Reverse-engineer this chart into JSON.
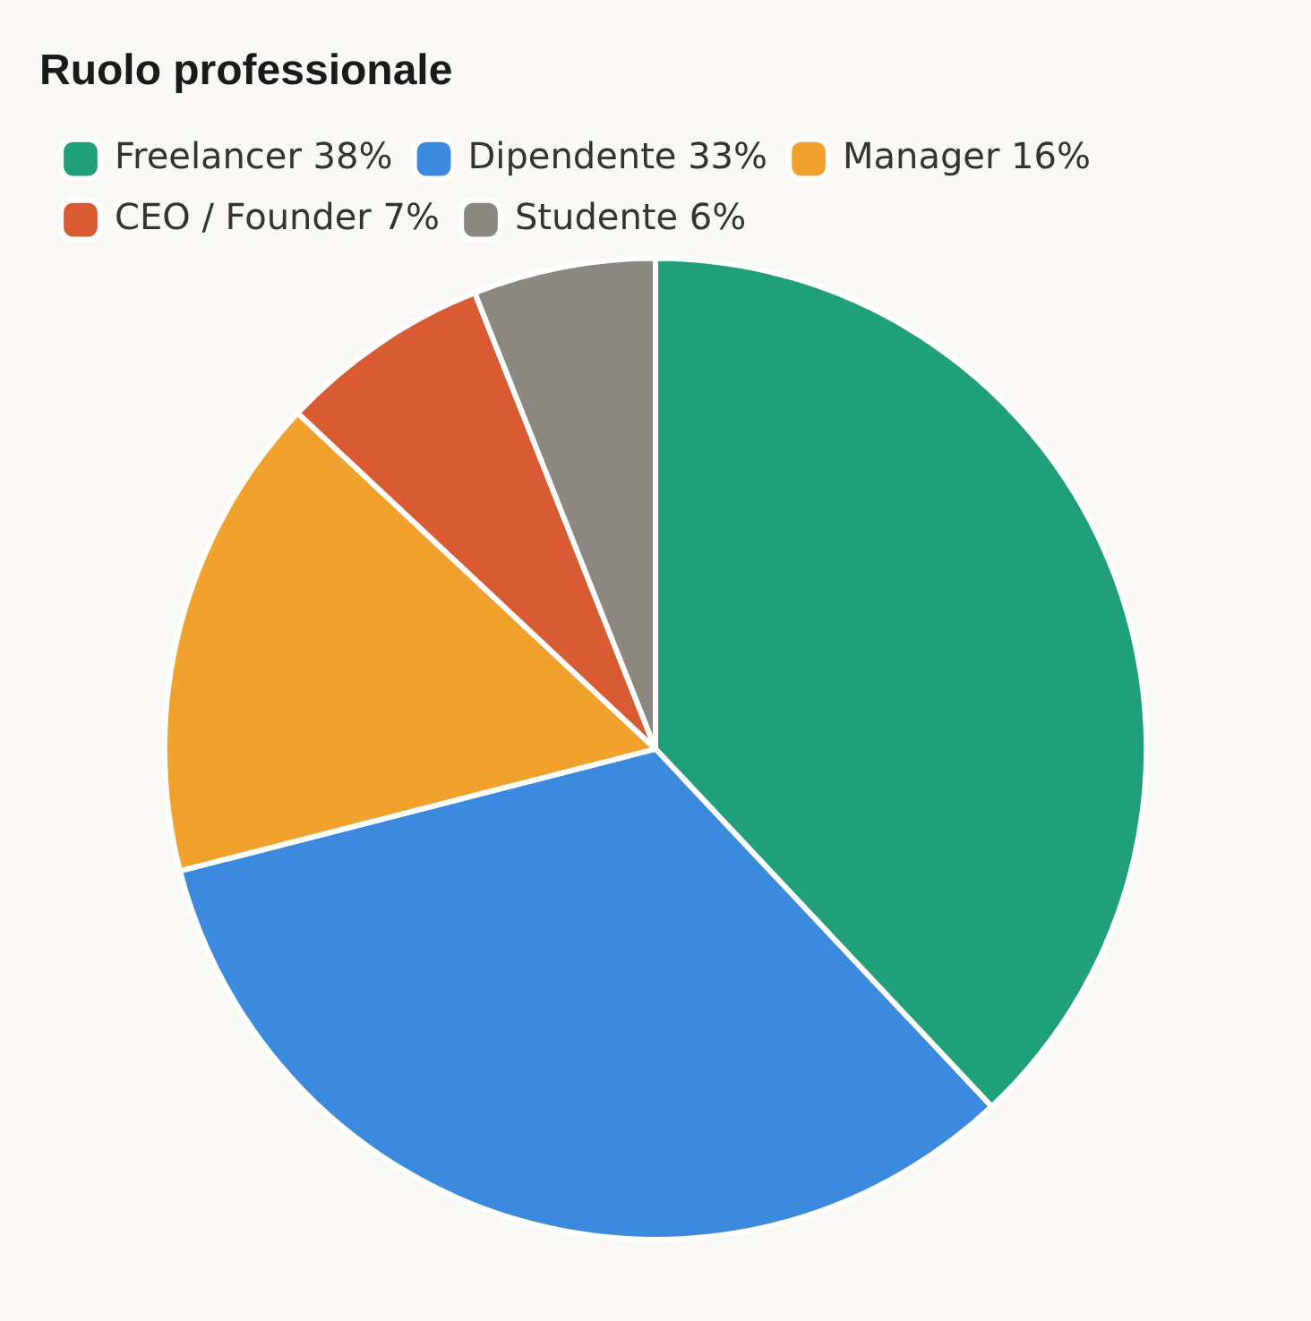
{
  "chart_data": {
    "type": "pie",
    "title": "Ruolo professionale",
    "categories": [
      "Freelancer 38%",
      "Dipendente 33%",
      "Manager 16%",
      "CEO / Founder 7%",
      "Studente 6%"
    ],
    "values": [
      38,
      33,
      16,
      7,
      6
    ],
    "colors": [
      "#1fa078",
      "#3b8ade",
      "#f0a22c",
      "#d95b33",
      "#8a8880"
    ],
    "legend": "top left"
  }
}
